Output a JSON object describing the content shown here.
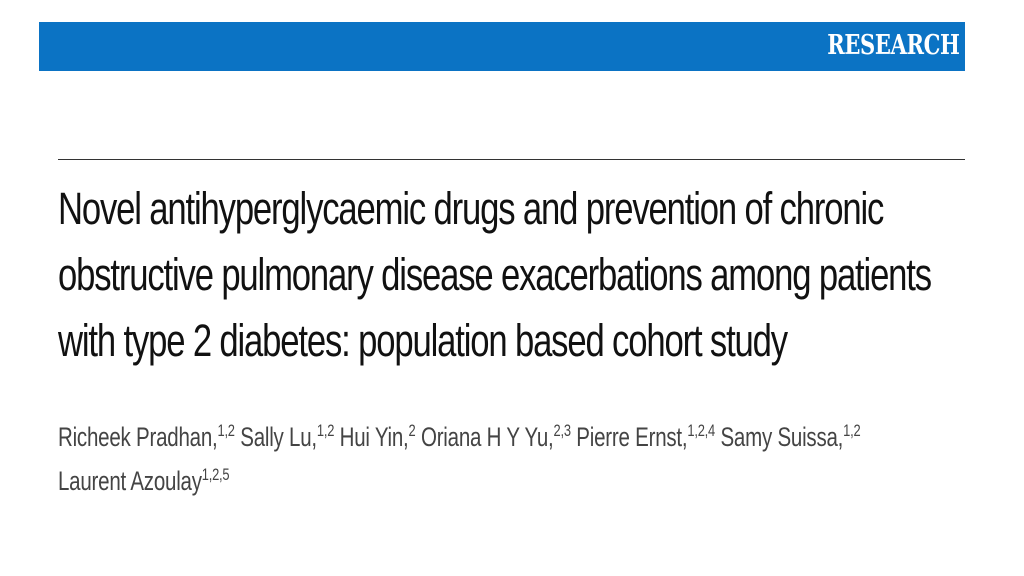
{
  "header": {
    "section_label": "RESEARCH",
    "accent_color": "#0b73c4"
  },
  "article": {
    "title_lines": [
      "Novel antihyperglycaemic drugs and prevention of chronic",
      "obstructive pulmonary disease exacerbations among patients",
      "with type 2 diabetes: population based cohort study"
    ],
    "authors": [
      {
        "name": "Richeek Pradhan,",
        "affil": "1,2"
      },
      {
        "name": "Sally Lu,",
        "affil": "1,2"
      },
      {
        "name": "Hui Yin,",
        "affil": "2"
      },
      {
        "name": "Oriana H Y Yu,",
        "affil": "2,3"
      },
      {
        "name": "Pierre Ernst,",
        "affil": "1,2,4"
      },
      {
        "name": "Samy Suissa,",
        "affil": "1,2"
      },
      {
        "name": "Laurent Azoulay",
        "affil": "1,2,5"
      }
    ]
  }
}
